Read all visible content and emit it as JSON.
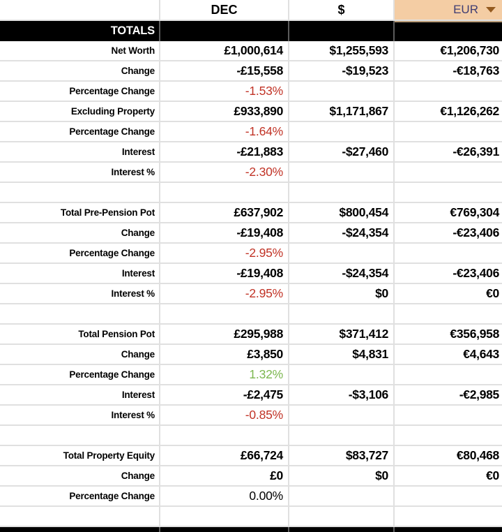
{
  "header": {
    "row_label_cell": "",
    "columns": [
      {
        "id": "dec",
        "label": "DEC"
      },
      {
        "id": "usd",
        "label": "$"
      },
      {
        "id": "eur",
        "label": "EUR",
        "has_dropdown": true
      }
    ]
  },
  "banner": {
    "label": "TOTALS"
  },
  "colors": {
    "eur_header_bg": "#f4cda4",
    "eur_header_text": "#3f3d73",
    "dropdown_arrow": "#945a1f",
    "negative_pct": "#c13326",
    "positive_pct": "#7cb750",
    "banner_bg": "#000000",
    "banner_text": "#ffffff",
    "gridline": "#e0e0e0"
  },
  "rows": [
    {
      "label": "Net Worth",
      "dec": "£1,000,614",
      "usd": "$1,255,593",
      "eur": "€1,206,730",
      "dec_style": "currency"
    },
    {
      "label": "Change",
      "dec": "-£15,558",
      "usd": "-$19,523",
      "eur": "-€18,763",
      "dec_style": "currency"
    },
    {
      "label": "Percentage Change",
      "dec": "-1.53%",
      "usd": "",
      "eur": "",
      "dec_style": "pct-neg"
    },
    {
      "label": "Excluding Property",
      "dec": "£933,890",
      "usd": "$1,171,867",
      "eur": "€1,126,262",
      "dec_style": "currency"
    },
    {
      "label": "Percentage Change",
      "dec": "-1.64%",
      "usd": "",
      "eur": "",
      "dec_style": "pct-neg"
    },
    {
      "label": "Interest",
      "dec": "-£21,883",
      "usd": "-$27,460",
      "eur": "-€26,391",
      "dec_style": "currency"
    },
    {
      "label": "Interest %",
      "dec": "-2.30%",
      "usd": "",
      "eur": "",
      "dec_style": "pct-neg"
    },
    {
      "label": "",
      "dec": "",
      "usd": "",
      "eur": "",
      "dec_style": ""
    },
    {
      "label": "Total Pre-Pension Pot",
      "dec": "£637,902",
      "usd": "$800,454",
      "eur": "€769,304",
      "dec_style": "currency"
    },
    {
      "label": "Change",
      "dec": "-£19,408",
      "usd": "-$24,354",
      "eur": "-€23,406",
      "dec_style": "currency"
    },
    {
      "label": "Percentage Change",
      "dec": "-2.95%",
      "usd": "",
      "eur": "",
      "dec_style": "pct-neg"
    },
    {
      "label": "Interest",
      "dec": "-£19,408",
      "usd": "-$24,354",
      "eur": "-€23,406",
      "dec_style": "currency"
    },
    {
      "label": "Interest %",
      "dec": "-2.95%",
      "usd": "$0",
      "eur": "€0",
      "dec_style": "pct-neg"
    },
    {
      "label": "",
      "dec": "",
      "usd": "",
      "eur": "",
      "dec_style": ""
    },
    {
      "label": "Total Pension Pot",
      "dec": "£295,988",
      "usd": "$371,412",
      "eur": "€356,958",
      "dec_style": "currency"
    },
    {
      "label": "Change",
      "dec": "£3,850",
      "usd": "$4,831",
      "eur": "€4,643",
      "dec_style": "currency"
    },
    {
      "label": "Percentage Change",
      "dec": "1.32%",
      "usd": "",
      "eur": "",
      "dec_style": "pct-pos"
    },
    {
      "label": "Interest",
      "dec": "-£2,475",
      "usd": "-$3,106",
      "eur": "-€2,985",
      "dec_style": "currency"
    },
    {
      "label": "Interest %",
      "dec": "-0.85%",
      "usd": "",
      "eur": "",
      "dec_style": "pct-neg"
    },
    {
      "label": "",
      "dec": "",
      "usd": "",
      "eur": "",
      "dec_style": ""
    },
    {
      "label": "Total Property Equity",
      "dec": "£66,724",
      "usd": "$83,727",
      "eur": "€80,468",
      "dec_style": "currency"
    },
    {
      "label": "Change",
      "dec": "£0",
      "usd": "$0",
      "eur": "€0",
      "dec_style": "currency"
    },
    {
      "label": "Percentage Change",
      "dec": "0.00%",
      "usd": "",
      "eur": "",
      "dec_style": "pct-zero"
    },
    {
      "label": "",
      "dec": "",
      "usd": "",
      "eur": "",
      "dec_style": ""
    }
  ]
}
